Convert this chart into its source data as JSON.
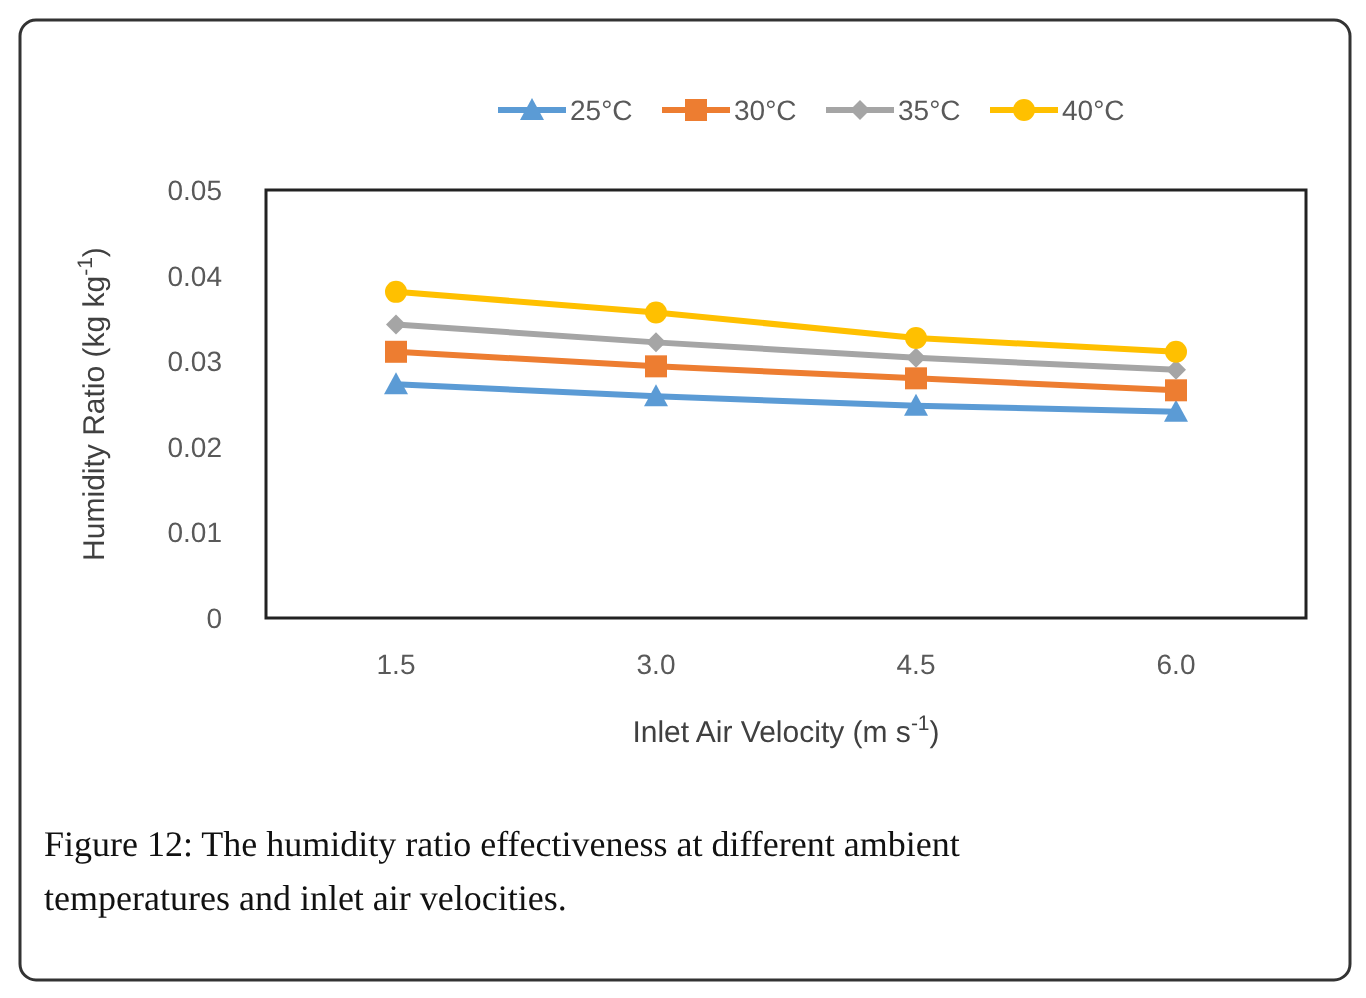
{
  "chart_data": {
    "type": "line",
    "xlabel": "Inlet Air Velocity (m s$^{-1}$)",
    "ylabel": "Humidity Ratio (kg kg$^{-1}$)",
    "categories": [
      "1.5",
      "3.0",
      "4.5",
      "6.0"
    ],
    "series": [
      {
        "name": "25°C",
        "color": "#5b9bd5",
        "marker": "triangle",
        "values": [
          0.0273,
          0.0259,
          0.0248,
          0.0241
        ]
      },
      {
        "name": "30°C",
        "color": "#ed7d31",
        "marker": "square",
        "values": [
          0.0311,
          0.0294,
          0.028,
          0.0266
        ]
      },
      {
        "name": "35°C",
        "color": "#a5a5a5",
        "marker": "diamond",
        "values": [
          0.0343,
          0.0322,
          0.0304,
          0.029
        ]
      },
      {
        "name": "40°C",
        "color": "#ffc000",
        "marker": "circle",
        "values": [
          0.0381,
          0.0357,
          0.0327,
          0.0311
        ]
      }
    ],
    "ylim": [
      0,
      0.05
    ],
    "yticks": [
      0,
      0.01,
      0.02,
      0.03,
      0.04,
      0.05
    ],
    "grid": false,
    "legend": "top",
    "line_style": "solid",
    "annotations": [
      "Figure 12: The humidity ratio effectiveness at different ambient temperatures and inlet air velocities."
    ]
  }
}
